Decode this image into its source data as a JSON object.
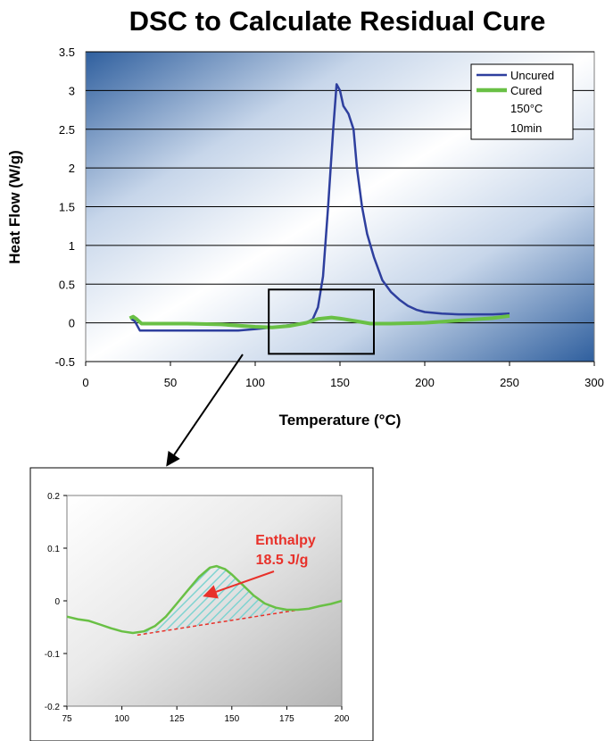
{
  "page": {
    "title": "DSC to Calculate Residual Cure"
  },
  "chart_data": [
    {
      "type": "line",
      "xlabel": "Temperature (°C)",
      "ylabel": "Heat Flow (W/g)",
      "xlim": [
        0,
        300
      ],
      "ylim": [
        -0.5,
        3.5
      ],
      "x_ticks": [
        "0",
        "50",
        "100",
        "150",
        "200",
        "250",
        "300"
      ],
      "y_ticks": [
        "-0.5",
        "0",
        "0.5",
        "1",
        "1.5",
        "2",
        "2.5",
        "3",
        "3.5"
      ],
      "grid": "horizontal",
      "legend_position": "top-right",
      "legend_note": [
        "150°C",
        "10min"
      ],
      "background": {
        "from": "#2f5f9e",
        "to": "#ffffff"
      },
      "series": [
        {
          "name": "Uncured",
          "color": "#2e3f9e",
          "points": [
            [
              27,
              0.05
            ],
            [
              29,
              0.02
            ],
            [
              32,
              -0.1
            ],
            [
              50,
              -0.1
            ],
            [
              70,
              -0.1
            ],
            [
              90,
              -0.1
            ],
            [
              100,
              -0.08
            ],
            [
              110,
              -0.06
            ],
            [
              120,
              -0.03
            ],
            [
              130,
              0.0
            ],
            [
              134,
              0.05
            ],
            [
              137,
              0.2
            ],
            [
              140,
              0.6
            ],
            [
              143,
              1.5
            ],
            [
              146,
              2.5
            ],
            [
              148,
              3.08
            ],
            [
              150,
              3.0
            ],
            [
              152,
              2.8
            ],
            [
              155,
              2.7
            ],
            [
              158,
              2.5
            ],
            [
              160,
              2.0
            ],
            [
              163,
              1.5
            ],
            [
              166,
              1.15
            ],
            [
              170,
              0.85
            ],
            [
              175,
              0.55
            ],
            [
              180,
              0.4
            ],
            [
              185,
              0.3
            ],
            [
              190,
              0.22
            ],
            [
              195,
              0.17
            ],
            [
              200,
              0.14
            ],
            [
              210,
              0.12
            ],
            [
              220,
              0.11
            ],
            [
              230,
              0.11
            ],
            [
              240,
              0.11
            ],
            [
              250,
              0.12
            ]
          ]
        },
        {
          "name": "Cured",
          "color": "#69c045",
          "points": [
            [
              26,
              0.06
            ],
            [
              28,
              0.08
            ],
            [
              30,
              0.05
            ],
            [
              33,
              -0.01
            ],
            [
              60,
              -0.01
            ],
            [
              80,
              -0.02
            ],
            [
              100,
              -0.05
            ],
            [
              110,
              -0.06
            ],
            [
              120,
              -0.04
            ],
            [
              130,
              0.0
            ],
            [
              137,
              0.05
            ],
            [
              145,
              0.07
            ],
            [
              152,
              0.05
            ],
            [
              160,
              0.02
            ],
            [
              168,
              -0.01
            ],
            [
              180,
              -0.01
            ],
            [
              200,
              0.0
            ],
            [
              220,
              0.03
            ],
            [
              240,
              0.06
            ],
            [
              250,
              0.09
            ]
          ]
        }
      ],
      "highlight_box": {
        "x": [
          108,
          170
        ],
        "y": [
          -0.4,
          0.43
        ]
      }
    },
    {
      "type": "area",
      "xlim": [
        75,
        200
      ],
      "ylim": [
        -0.2,
        0.2
      ],
      "x_ticks": [
        "75",
        "100",
        "125",
        "150",
        "175",
        "200"
      ],
      "y_ticks": [
        "-0.2",
        "-0.1",
        "0",
        "0.1",
        "0.2"
      ],
      "background": {
        "from": "#ffffff",
        "to": "#b4b4b4"
      },
      "series": [
        {
          "name": "Cured",
          "color": "#69c045",
          "points": [
            [
              75,
              -0.03
            ],
            [
              80,
              -0.035
            ],
            [
              85,
              -0.038
            ],
            [
              90,
              -0.045
            ],
            [
              95,
              -0.052
            ],
            [
              100,
              -0.058
            ],
            [
              105,
              -0.061
            ],
            [
              110,
              -0.058
            ],
            [
              115,
              -0.048
            ],
            [
              120,
              -0.03
            ],
            [
              125,
              -0.005
            ],
            [
              130,
              0.02
            ],
            [
              135,
              0.045
            ],
            [
              140,
              0.063
            ],
            [
              143,
              0.066
            ],
            [
              147,
              0.06
            ],
            [
              150,
              0.05
            ],
            [
              155,
              0.03
            ],
            [
              160,
              0.01
            ],
            [
              165,
              -0.005
            ],
            [
              170,
              -0.013
            ],
            [
              175,
              -0.017
            ],
            [
              180,
              -0.017
            ],
            [
              185,
              -0.015
            ],
            [
              190,
              -0.01
            ],
            [
              195,
              -0.006
            ],
            [
              200,
              0.0
            ]
          ]
        }
      ],
      "baseline": [
        [
          107,
          -0.065
        ],
        [
          179,
          -0.018
        ]
      ],
      "annotation": {
        "lines": [
          "Enthalpy",
          "18.5 J/g"
        ],
        "color": "#e8312a",
        "arrow_to": [
          138,
          0.01
        ]
      }
    }
  ]
}
